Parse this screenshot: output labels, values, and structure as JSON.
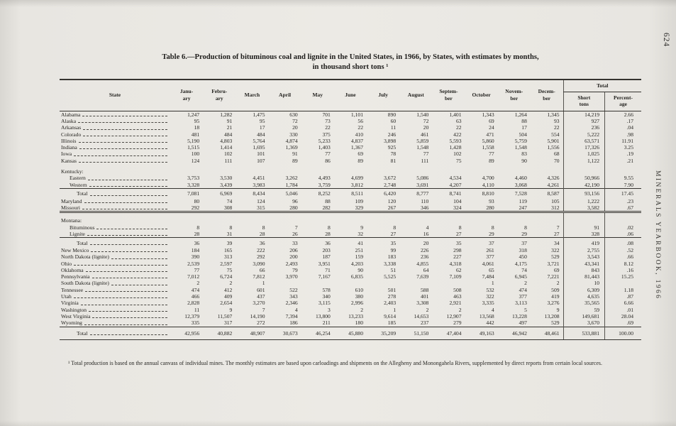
{
  "page": {
    "page_number": "624",
    "side_text": "MINERALS YEARBOOK, 1966"
  },
  "title": {
    "line1": "Table 6.—Production of bituminous coal and lignite in the United States, in 1966, by States, with estimates by months,",
    "line2": "in thousand short tons ¹"
  },
  "table": {
    "state_header": "State",
    "months": [
      "Janu-\nary",
      "Febru-\nary",
      "March",
      "April",
      "May",
      "June",
      "July",
      "August",
      "Septem-\nber",
      "October",
      "Novem-\nber",
      "Decem-\nber"
    ],
    "total_header": "Total",
    "short_tons_header": "Short\ntons",
    "percentage_header": "Percent-\nage",
    "rows": [
      {
        "label": "Alabama",
        "indent": 0,
        "leader": true,
        "style": "data",
        "rule": null,
        "values": [
          "1,247",
          "1,282",
          "1,475",
          "630",
          "701",
          "1,101",
          "890",
          "1,540",
          "1,401",
          "1,343",
          "1,264",
          "1,345",
          "14,219",
          "2.66"
        ]
      },
      {
        "label": "Alaska",
        "indent": 0,
        "leader": true,
        "style": "data",
        "rule": null,
        "values": [
          "95",
          "91",
          "95",
          "72",
          "73",
          "56",
          "60",
          "72",
          "63",
          "69",
          "88",
          "93",
          "927",
          ".17"
        ]
      },
      {
        "label": "Arkansas",
        "indent": 0,
        "leader": true,
        "style": "data",
        "rule": null,
        "values": [
          "18",
          "21",
          "17",
          "20",
          "22",
          "22",
          "11",
          "20",
          "22",
          "24",
          "17",
          "22",
          "236",
          ".04"
        ]
      },
      {
        "label": "Colorado",
        "indent": 0,
        "leader": true,
        "style": "data",
        "rule": null,
        "values": [
          "481",
          "484",
          "484",
          "330",
          "375",
          "410",
          "246",
          "461",
          "422",
          "471",
          "504",
          "554",
          "5,222",
          ".98"
        ]
      },
      {
        "label": "Illinois",
        "indent": 0,
        "leader": true,
        "style": "data",
        "rule": null,
        "values": [
          "5,190",
          "4,803",
          "5,764",
          "4,874",
          "5,233",
          "4,837",
          "3,898",
          "5,859",
          "5,593",
          "5,860",
          "5,759",
          "5,901",
          "63,571",
          "11.91"
        ]
      },
      {
        "label": "Indiana",
        "indent": 0,
        "leader": true,
        "style": "data",
        "rule": null,
        "values": [
          "1,515",
          "1,414",
          "1,695",
          "1,369",
          "1,403",
          "1,367",
          "925",
          "1,548",
          "1,428",
          "1,558",
          "1,548",
          "1,556",
          "17,326",
          "3.25"
        ]
      },
      {
        "label": "Iowa",
        "indent": 0,
        "leader": true,
        "style": "data",
        "rule": null,
        "values": [
          "100",
          "102",
          "101",
          "91",
          "77",
          "69",
          "78",
          "77",
          "102",
          "77",
          "83",
          "68",
          "1,025",
          ".19"
        ]
      },
      {
        "label": "Kansas",
        "indent": 0,
        "leader": true,
        "style": "data",
        "rule": null,
        "values": [
          "124",
          "111",
          "107",
          "89",
          "86",
          "89",
          "81",
          "111",
          "75",
          "89",
          "90",
          "70",
          "1,122",
          ".21"
        ]
      },
      {
        "label": "Kentucky:",
        "indent": 0,
        "leader": false,
        "style": "group",
        "rule": null,
        "values": []
      },
      {
        "label": "Eastern",
        "indent": 1,
        "leader": true,
        "style": "data",
        "rule": null,
        "values": [
          "3,753",
          "3,530",
          "4,451",
          "3,262",
          "4,493",
          "4,699",
          "3,672",
          "5,086",
          "4,534",
          "4,700",
          "4,460",
          "4,326",
          "50,966",
          "9.55"
        ]
      },
      {
        "label": "Western",
        "indent": 1,
        "leader": true,
        "style": "data",
        "rule": null,
        "values": [
          "3,328",
          "3,439",
          "3,983",
          "1,784",
          "3,759",
          "3,812",
          "2,748",
          "3,691",
          "4,207",
          "4,110",
          "3,068",
          "4,261",
          "42,190",
          "7.90"
        ]
      },
      {
        "label": "Total",
        "indent": 2,
        "leader": true,
        "style": "subtotal",
        "rule": "single",
        "values": [
          "7,081",
          "6,969",
          "8,434",
          "5,046",
          "8,252",
          "8,511",
          "6,420",
          "8,777",
          "8,741",
          "8,810",
          "7,528",
          "8,587",
          "93,156",
          "17.45"
        ]
      },
      {
        "label": "Maryland",
        "indent": 0,
        "leader": true,
        "style": "data",
        "rule": null,
        "values": [
          "80",
          "74",
          "124",
          "96",
          "88",
          "109",
          "120",
          "110",
          "104",
          "93",
          "119",
          "105",
          "1,222",
          ".23"
        ]
      },
      {
        "label": "Missouri",
        "indent": 0,
        "leader": true,
        "style": "data",
        "rule": null,
        "values": [
          "292",
          "308",
          "315",
          "280",
          "282",
          "329",
          "267",
          "346",
          "324",
          "280",
          "247",
          "312",
          "3,582",
          ".67"
        ]
      },
      {
        "label": "Montana:",
        "indent": 0,
        "leader": false,
        "style": "group",
        "rule": "double",
        "values": []
      },
      {
        "label": "Bituminous",
        "indent": 1,
        "leader": true,
        "style": "data",
        "rule": null,
        "values": [
          "8",
          "8",
          "8",
          "7",
          "8",
          "9",
          "8",
          "4",
          "8",
          "8",
          "8",
          "7",
          "91",
          ".02"
        ]
      },
      {
        "label": "Lignite",
        "indent": 1,
        "leader": true,
        "style": "data",
        "rule": null,
        "values": [
          "28",
          "31",
          "28",
          "26",
          "28",
          "32",
          "27",
          "16",
          "27",
          "29",
          "29",
          "27",
          "328",
          ".06"
        ]
      },
      {
        "label": "Total",
        "indent": 2,
        "leader": true,
        "style": "subtotal",
        "rule": "single",
        "values": [
          "36",
          "39",
          "36",
          "33",
          "36",
          "41",
          "35",
          "20",
          "35",
          "37",
          "37",
          "34",
          "419",
          ".08"
        ]
      },
      {
        "label": "New Mexico",
        "indent": 0,
        "leader": true,
        "style": "data",
        "rule": null,
        "values": [
          "184",
          "165",
          "222",
          "206",
          "203",
          "251",
          "99",
          "226",
          "298",
          "261",
          "318",
          "322",
          "2,755",
          ".52"
        ]
      },
      {
        "label": "North Dakota (lignite)",
        "indent": 0,
        "leader": true,
        "style": "data",
        "rule": null,
        "values": [
          "390",
          "313",
          "292",
          "200",
          "187",
          "159",
          "183",
          "236",
          "227",
          "377",
          "450",
          "529",
          "3,543",
          ".66"
        ]
      },
      {
        "label": "Ohio",
        "indent": 0,
        "leader": true,
        "style": "data",
        "rule": null,
        "values": [
          "2,539",
          "2,597",
          "3,090",
          "2,493",
          "3,951",
          "4,203",
          "3,338",
          "4,855",
          "4,318",
          "4,061",
          "4,175",
          "3,721",
          "43,341",
          "8.12"
        ]
      },
      {
        "label": "Oklahoma",
        "indent": 0,
        "leader": true,
        "style": "data",
        "rule": null,
        "values": [
          "77",
          "75",
          "66",
          "79",
          "71",
          "90",
          "51",
          "64",
          "62",
          "65",
          "74",
          "69",
          "843",
          ".16"
        ]
      },
      {
        "label": "Pennsylvania",
        "indent": 0,
        "leader": true,
        "style": "data",
        "rule": null,
        "values": [
          "7,012",
          "6,724",
          "7,812",
          "3,970",
          "7,167",
          "6,835",
          "5,525",
          "7,639",
          "7,109",
          "7,484",
          "6,945",
          "7,221",
          "81,443",
          "15.25"
        ]
      },
      {
        "label": "South Dakota (lignite)",
        "indent": 0,
        "leader": true,
        "style": "data",
        "rule": null,
        "values": [
          "2",
          "2",
          "1",
          "",
          "",
          "",
          "",
          "",
          "",
          "1",
          "2",
          "2",
          "10",
          ""
        ]
      },
      {
        "label": "Tennessee",
        "indent": 0,
        "leader": true,
        "style": "data",
        "rule": null,
        "values": [
          "474",
          "412",
          "601",
          "522",
          "578",
          "610",
          "501",
          "588",
          "508",
          "532",
          "474",
          "509",
          "6,309",
          "1.18"
        ]
      },
      {
        "label": "Utah",
        "indent": 0,
        "leader": true,
        "style": "data",
        "rule": null,
        "values": [
          "466",
          "409",
          "437",
          "343",
          "340",
          "380",
          "278",
          "401",
          "463",
          "322",
          "377",
          "419",
          "4,635",
          ".87"
        ]
      },
      {
        "label": "Virginia",
        "indent": 0,
        "leader": true,
        "style": "data",
        "rule": null,
        "values": [
          "2,828",
          "2,654",
          "3,270",
          "2,346",
          "3,115",
          "2,996",
          "2,403",
          "3,308",
          "2,921",
          "3,335",
          "3,113",
          "3,276",
          "35,565",
          "6.66"
        ]
      },
      {
        "label": "Washington",
        "indent": 0,
        "leader": true,
        "style": "data",
        "rule": null,
        "values": [
          "11",
          "9",
          "7",
          "4",
          "3",
          "2",
          "1",
          "2",
          "2",
          "4",
          "5",
          "9",
          "59",
          ".01"
        ]
      },
      {
        "label": "West Virginia",
        "indent": 0,
        "leader": true,
        "style": "data",
        "rule": null,
        "values": [
          "12,379",
          "11,507",
          "14,190",
          "7,394",
          "13,800",
          "13,233",
          "9,614",
          "14,653",
          "12,907",
          "13,568",
          "13,228",
          "13,208",
          "149,681",
          "28.04"
        ]
      },
      {
        "label": "Wyoming",
        "indent": 0,
        "leader": true,
        "style": "data",
        "rule": null,
        "values": [
          "335",
          "317",
          "272",
          "186",
          "211",
          "180",
          "185",
          "237",
          "279",
          "442",
          "497",
          "529",
          "3,670",
          ".69"
        ]
      },
      {
        "label": "Total",
        "indent": 2,
        "leader": true,
        "style": "grandtotal",
        "rule": null,
        "values": [
          "42,956",
          "40,882",
          "48,907",
          "30,673",
          "46,254",
          "45,880",
          "35,209",
          "51,150",
          "47,404",
          "49,163",
          "46,942",
          "48,461",
          "533,881",
          "100.00"
        ]
      }
    ]
  },
  "footnote": "¹ Total production is based on the annual canvass of individual mines. The monthly estimates are based upon carloadings and shipments on the Allegheny and Monongahela Rivers, supplemented by direct reports from certain local sources."
}
